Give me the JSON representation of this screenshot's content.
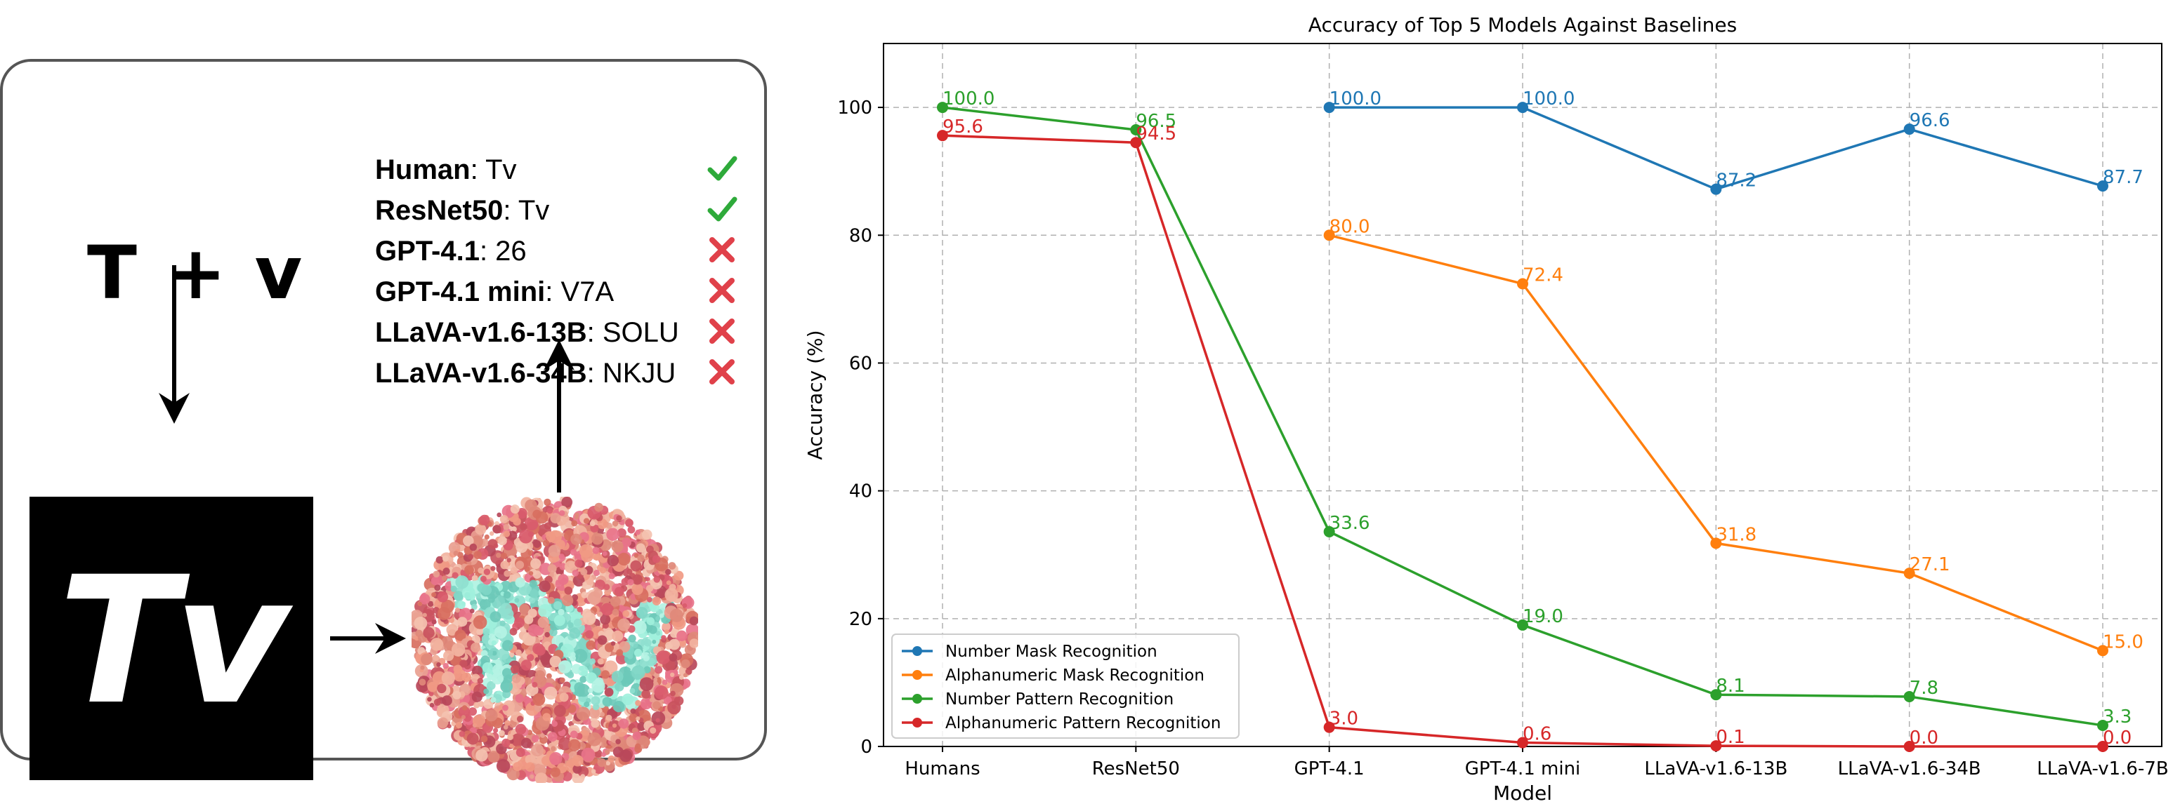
{
  "figure": {
    "formula": "T + v",
    "tv_text": "Tv",
    "results": [
      {
        "model": "Human",
        "answer": "Tv",
        "correct": true
      },
      {
        "model": "ResNet50",
        "answer": "Tv",
        "correct": true
      },
      {
        "model": "GPT-4.1",
        "answer": "26",
        "correct": false
      },
      {
        "model": "GPT-4.1 mini",
        "answer": "V7A",
        "correct": false
      },
      {
        "model": "LLaVA-v1.6-13B",
        "answer": "SOLU",
        "correct": false
      },
      {
        "model": "LLaVA-v1.6-34B",
        "answer": "NKJU",
        "correct": false
      }
    ],
    "colors": {
      "check": "#2eaa3a",
      "cross": "#e0414a"
    }
  },
  "chart_data": {
    "type": "line",
    "title": "Accuracy of Top 5 Models Against Baselines",
    "xlabel": "Model",
    "ylabel": "Accuracy (%)",
    "ylim": [
      0,
      110
    ],
    "yticks": [
      0,
      20,
      40,
      60,
      80,
      100
    ],
    "grid": true,
    "legend_position": "bottom-left",
    "categories": [
      "Humans",
      "ResNet50",
      "GPT-4.1",
      "GPT-4.1 mini",
      "LLaVA-v1.6-13B",
      "LLaVA-v1.6-34B",
      "LLaVA-v1.6-7B"
    ],
    "series": [
      {
        "name": "Number Mask Recognition",
        "color": "#1f77b4",
        "values": [
          null,
          null,
          100.0,
          100.0,
          87.2,
          96.6,
          87.7
        ],
        "labels": [
          "",
          "",
          "100.0",
          "100.0",
          "87.2",
          "96.6",
          "87.7"
        ]
      },
      {
        "name": "Alphanumeric Mask Recognition",
        "color": "#ff7f0e",
        "values": [
          null,
          null,
          80.0,
          72.4,
          31.8,
          27.1,
          15.0
        ],
        "labels": [
          "",
          "",
          "80.0",
          "72.4",
          "31.8",
          "27.1",
          "15.0"
        ]
      },
      {
        "name": "Number Pattern Recognition",
        "color": "#2ca02c",
        "values": [
          100.0,
          96.5,
          33.6,
          19.0,
          8.1,
          7.8,
          3.3
        ],
        "labels": [
          "100.0",
          "96.5",
          "33.6",
          "19.0",
          "8.1",
          "7.8",
          "3.3"
        ]
      },
      {
        "name": "Alphanumeric Pattern Recognition",
        "color": "#d62728",
        "values": [
          95.6,
          94.5,
          3.0,
          0.6,
          0.1,
          0.0,
          0.0
        ],
        "labels": [
          "95.6",
          "94.5",
          "3.0",
          "0.6",
          "0.1",
          "0.0",
          "0.0"
        ]
      }
    ]
  }
}
